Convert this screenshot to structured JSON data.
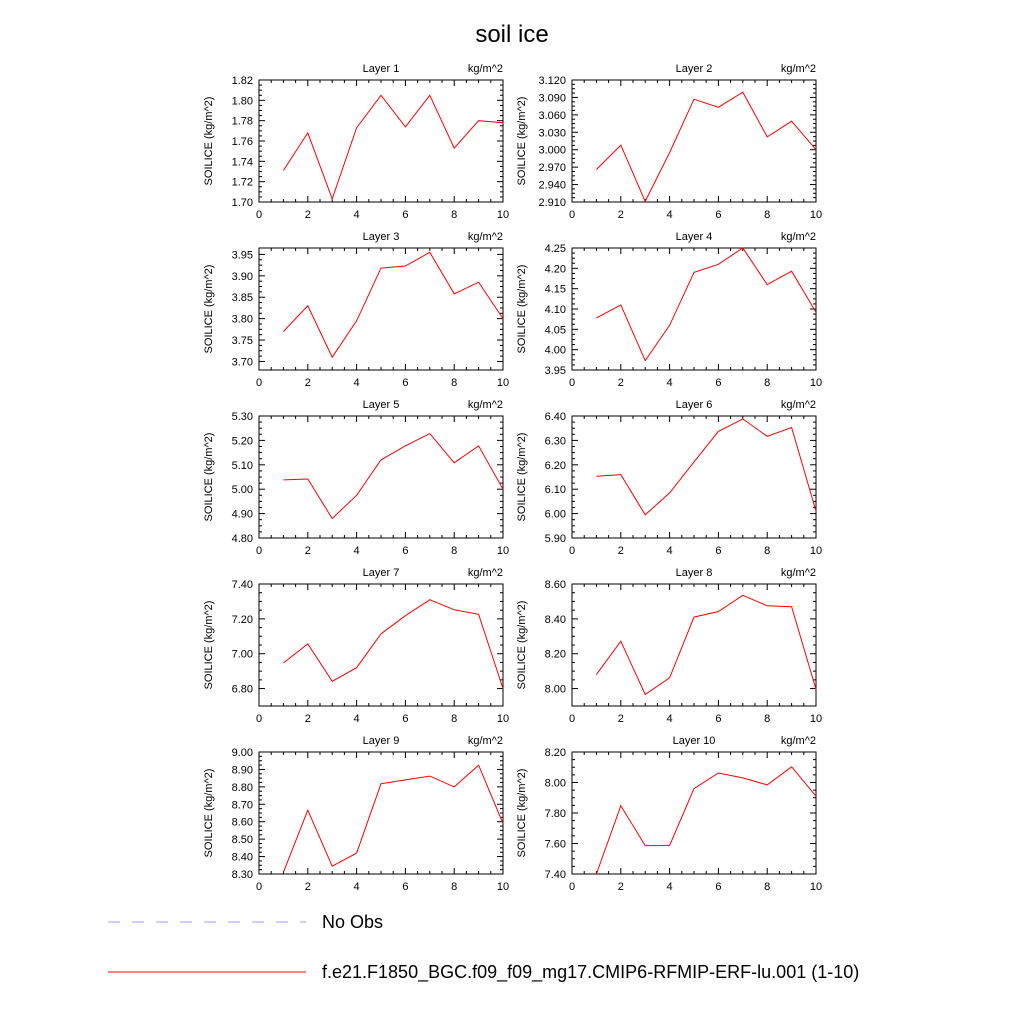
{
  "title": "soil ice",
  "legend": {
    "items": [
      {
        "label": "No Obs",
        "color": "#9999ff",
        "dash": true
      },
      {
        "label": "f.e21.F1850_BGC.f09_f09_mg17.CMIP6-RFMIP-ERF-lu.001 (1-10)",
        "color": "#ff0000",
        "dash": false
      }
    ]
  },
  "chart_data": [
    {
      "type": "line",
      "title": "Layer 1",
      "units": "kg/m^2",
      "ylabel": "SOILICE  (kg/m^2)",
      "xlim": [
        0,
        10
      ],
      "xticks": [
        "0",
        "2",
        "4",
        "6",
        "8",
        "10"
      ],
      "ylim": [
        1.7,
        1.82
      ],
      "yticks": [
        "1.70",
        "1.72",
        "1.74",
        "1.76",
        "1.78",
        "1.80",
        "1.82"
      ],
      "x": [
        1,
        2,
        3,
        4,
        5,
        6,
        7,
        8,
        9,
        10
      ],
      "series": [
        {
          "values": [
            1.731,
            1.768,
            1.703,
            1.773,
            1.805,
            1.774,
            1.805,
            1.753,
            1.78,
            1.778
          ]
        }
      ]
    },
    {
      "type": "line",
      "title": "Layer 2",
      "units": "kg/m^2",
      "ylabel": "SOILICE  (kg/m^2)",
      "xlim": [
        0,
        10
      ],
      "xticks": [
        "0",
        "2",
        "4",
        "6",
        "8",
        "10"
      ],
      "ylim": [
        2.91,
        3.12
      ],
      "yticks": [
        "2.910",
        "2.940",
        "2.970",
        "3.000",
        "3.030",
        "3.060",
        "3.090",
        "3.120"
      ],
      "x": [
        1,
        2,
        3,
        4,
        5,
        6,
        7,
        8,
        9,
        10
      ],
      "series": [
        {
          "values": [
            2.966,
            3.008,
            2.911,
            2.995,
            3.087,
            3.073,
            3.099,
            3.022,
            3.049,
            3.0
          ]
        }
      ]
    },
    {
      "type": "line",
      "title": "Layer 3",
      "units": "kg/m^2",
      "ylabel": "SOILICE  (kg/m^2)",
      "xlim": [
        0,
        10
      ],
      "xticks": [
        "0",
        "2",
        "4",
        "6",
        "8",
        "10"
      ],
      "ylim": [
        3.68,
        3.965
      ],
      "yticks": [
        "3.70",
        "3.75",
        "3.80",
        "3.85",
        "3.90",
        "3.95"
      ],
      "x": [
        1,
        2,
        3,
        4,
        5,
        6,
        7,
        8,
        9,
        10
      ],
      "series": [
        {
          "values": [
            3.77,
            3.83,
            3.71,
            3.795,
            3.918,
            3.923,
            3.955,
            3.858,
            3.885,
            3.8
          ]
        }
      ]
    },
    {
      "type": "line",
      "title": "Layer 4",
      "units": "kg/m^2",
      "ylabel": "SOILICE  (kg/m^2)",
      "xlim": [
        0,
        10
      ],
      "xticks": [
        "0",
        "2",
        "4",
        "6",
        "8",
        "10"
      ],
      "ylim": [
        3.95,
        4.25
      ],
      "yticks": [
        "3.95",
        "4.00",
        "4.05",
        "4.10",
        "4.15",
        "4.20",
        "4.25"
      ],
      "x": [
        1,
        2,
        3,
        4,
        5,
        6,
        7,
        8,
        9,
        10
      ],
      "series": [
        {
          "values": [
            4.078,
            4.11,
            3.973,
            4.06,
            4.19,
            4.21,
            4.25,
            4.16,
            4.193,
            4.092
          ]
        }
      ]
    },
    {
      "type": "line",
      "title": "Layer 5",
      "units": "kg/m^2",
      "ylabel": "SOILICE  (kg/m^2)",
      "xlim": [
        0,
        10
      ],
      "xticks": [
        "0",
        "2",
        "4",
        "6",
        "8",
        "10"
      ],
      "ylim": [
        4.8,
        5.3
      ],
      "yticks": [
        "4.80",
        "4.90",
        "5.00",
        "5.10",
        "5.20",
        "5.30"
      ],
      "x": [
        1,
        2,
        3,
        4,
        5,
        6,
        7,
        8,
        9,
        10
      ],
      "series": [
        {
          "values": [
            5.038,
            5.042,
            4.88,
            4.975,
            5.12,
            5.178,
            5.228,
            5.108,
            5.178,
            5.0
          ]
        }
      ]
    },
    {
      "type": "line",
      "title": "Layer 6",
      "units": "kg/m^2",
      "ylabel": "SOILICE  (kg/m^2)",
      "xlim": [
        0,
        10
      ],
      "xticks": [
        "0",
        "2",
        "4",
        "6",
        "8",
        "10"
      ],
      "ylim": [
        5.9,
        6.4
      ],
      "yticks": [
        "5.90",
        "6.00",
        "6.10",
        "6.20",
        "6.30",
        "6.40"
      ],
      "x": [
        1,
        2,
        3,
        4,
        5,
        6,
        7,
        8,
        9,
        10
      ],
      "series": [
        {
          "values": [
            6.153,
            6.16,
            5.995,
            6.085,
            6.212,
            6.337,
            6.388,
            6.317,
            6.353,
            6.01
          ]
        }
      ]
    },
    {
      "type": "line",
      "title": "Layer 7",
      "units": "kg/m^2",
      "ylabel": "SOILICE  (kg/m^2)",
      "xlim": [
        0,
        10
      ],
      "xticks": [
        "0",
        "2",
        "4",
        "6",
        "8",
        "10"
      ],
      "ylim": [
        6.7,
        7.4
      ],
      "yticks": [
        "6.80",
        "7.00",
        "7.20",
        "7.40"
      ],
      "x": [
        1,
        2,
        3,
        4,
        5,
        6,
        7,
        8,
        9,
        10
      ],
      "series": [
        {
          "values": [
            6.947,
            7.057,
            6.842,
            6.92,
            7.114,
            7.218,
            7.31,
            7.252,
            7.226,
            6.8
          ]
        }
      ]
    },
    {
      "type": "line",
      "title": "Layer 8",
      "units": "kg/m^2",
      "ylabel": "SOILICE  (kg/m^2)",
      "xlim": [
        0,
        10
      ],
      "xticks": [
        "0",
        "2",
        "4",
        "6",
        "8",
        "10"
      ],
      "ylim": [
        7.9,
        8.6
      ],
      "yticks": [
        "8.00",
        "8.20",
        "8.40",
        "8.60"
      ],
      "x": [
        1,
        2,
        3,
        4,
        5,
        6,
        7,
        8,
        9,
        10
      ],
      "series": [
        {
          "values": [
            8.08,
            8.272,
            7.966,
            8.062,
            8.41,
            8.442,
            8.535,
            8.475,
            8.47,
            7.995
          ]
        }
      ]
    },
    {
      "type": "line",
      "title": "Layer 9",
      "units": "kg/m^2",
      "ylabel": "SOILICE  (kg/m^2)",
      "xlim": [
        0,
        10
      ],
      "xticks": [
        "0",
        "2",
        "4",
        "6",
        "8",
        "10"
      ],
      "ylim": [
        8.3,
        9.0
      ],
      "yticks": [
        "8.30",
        "8.40",
        "8.50",
        "8.60",
        "8.70",
        "8.80",
        "8.90",
        "9.00"
      ],
      "x": [
        1,
        2,
        3,
        4,
        5,
        6,
        7,
        8,
        9,
        10
      ],
      "series": [
        {
          "values": [
            8.31,
            8.666,
            8.345,
            8.42,
            8.818,
            8.84,
            8.862,
            8.8,
            8.924,
            8.59
          ]
        }
      ]
    },
    {
      "type": "line",
      "title": "Layer 10",
      "units": "kg/m^2",
      "ylabel": "SOILICE  (kg/m^2)",
      "xlim": [
        0,
        10
      ],
      "xticks": [
        "0",
        "2",
        "4",
        "6",
        "8",
        "10"
      ],
      "ylim": [
        7.4,
        8.2
      ],
      "yticks": [
        "7.40",
        "7.60",
        "7.80",
        "8.00",
        "8.20"
      ],
      "x": [
        1,
        2,
        3,
        4,
        5,
        6,
        7,
        8,
        9,
        10
      ],
      "series": [
        {
          "values": [
            7.4,
            7.847,
            7.586,
            7.587,
            7.96,
            8.062,
            8.03,
            7.984,
            8.103,
            7.91
          ]
        }
      ]
    }
  ]
}
